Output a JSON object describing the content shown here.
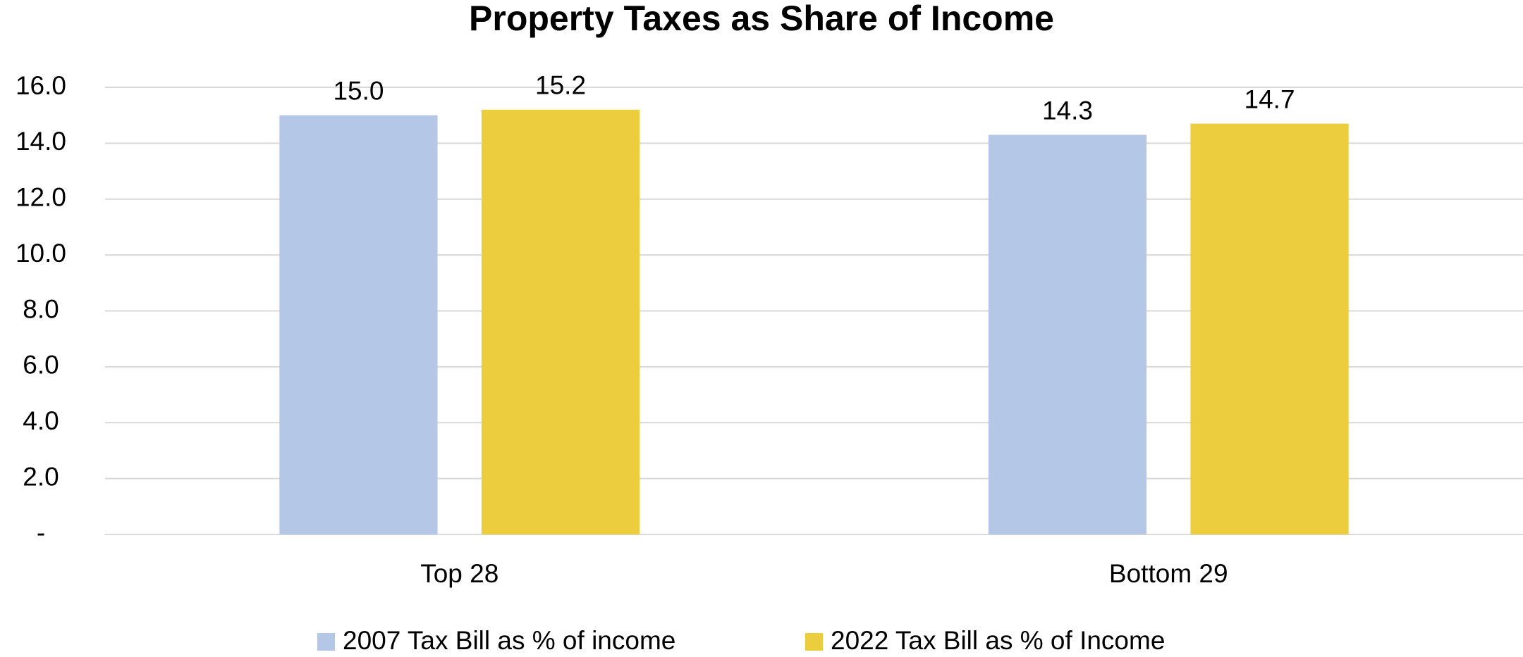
{
  "chart_data": {
    "type": "bar",
    "title": "Property Taxes as Share of Income",
    "categories": [
      "Top 28",
      "Bottom 29"
    ],
    "series": [
      {
        "name": "2007 Tax Bill as % of income",
        "color": "#b4c7e7",
        "values": [
          15.0,
          14.3
        ],
        "value_labels": [
          "15.0",
          "14.3"
        ]
      },
      {
        "name": "2022 Tax Bill as % of Income",
        "color": "#ebcd3d",
        "values": [
          15.2,
          14.7
        ],
        "value_labels": [
          "15.2",
          "14.7"
        ]
      }
    ],
    "ylim": [
      0,
      16
    ],
    "yticks": [
      {
        "value": 0,
        "label": "-"
      },
      {
        "value": 2,
        "label": "2.0"
      },
      {
        "value": 4,
        "label": "4.0"
      },
      {
        "value": 6,
        "label": "6.0"
      },
      {
        "value": 8,
        "label": "8.0"
      },
      {
        "value": 10,
        "label": "10.0"
      },
      {
        "value": 12,
        "label": "12.0"
      },
      {
        "value": 14,
        "label": "14.0"
      },
      {
        "value": 16,
        "label": "16.0"
      }
    ],
    "grid": true,
    "legend": "bottom"
  }
}
